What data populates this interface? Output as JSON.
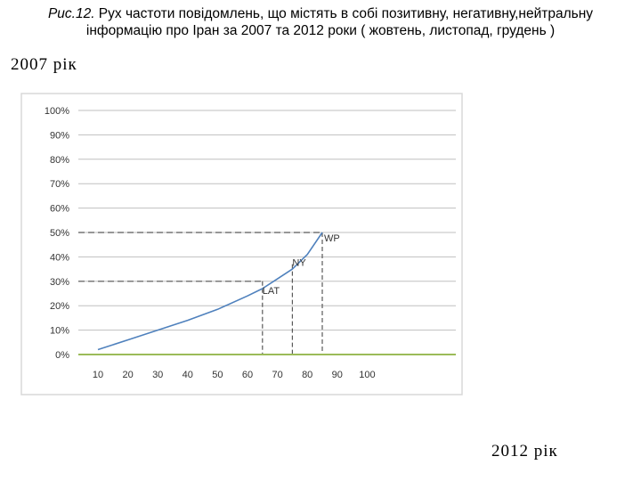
{
  "caption": {
    "prefix": "Рис.12.",
    "text": " Рух частоти повідомлень, що містять в собі позитивну, негативну,нейтральну інформацію про Іран за 2007 та 2012 роки ( жовтень, листопад, грудень )"
  },
  "year_top": "2007 рік",
  "year_bottom": "2012 рік",
  "colors": {
    "curve": "#4f81bd",
    "baseline": "#9bbb59",
    "grid": "#bfbfbf",
    "guide": "#595959",
    "frame": "#d9d9d9"
  },
  "chart_data": {
    "type": "line",
    "title": "",
    "xlabel": "",
    "ylabel": "",
    "x_ticks": [
      10,
      20,
      30,
      40,
      50,
      60,
      70,
      80,
      90,
      100
    ],
    "y_ticks": [
      "0%",
      "10%",
      "20%",
      "30%",
      "40%",
      "50%",
      "60%",
      "70%",
      "80%",
      "90%",
      "100%"
    ],
    "xlim": [
      10,
      100
    ],
    "ylim": [
      0,
      100
    ],
    "grid": true,
    "series": [
      {
        "x": [
          10,
          20,
          30,
          40,
          50,
          60,
          65,
          70,
          75,
          80,
          85
        ],
        "y": [
          2,
          6,
          10,
          14,
          18.5,
          24,
          27,
          31,
          35,
          41,
          50
        ]
      },
      {
        "x": [
          10,
          100
        ],
        "y": [
          0,
          0
        ]
      }
    ],
    "annotations": [
      {
        "label": "LAT",
        "x": 65,
        "y": 30
      },
      {
        "label": "NY",
        "x": 75,
        "y": 37
      },
      {
        "label": "WP",
        "x": 85,
        "y": 50
      }
    ]
  }
}
